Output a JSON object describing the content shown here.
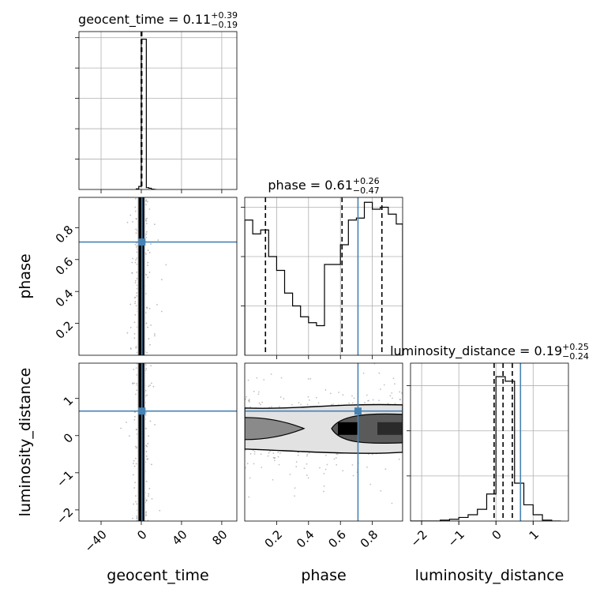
{
  "chart_data": {
    "type": "corner",
    "colors": {
      "truth": "#4682b4",
      "histogram": "#000000",
      "grid": "#b0b0b0",
      "sample_points": "#8c8c8c"
    },
    "grid": true,
    "parameters": [
      {
        "key": "geocent_time",
        "label": "geocent_time",
        "title": {
          "prefix": "geocent_time = ",
          "median": "0.11",
          "upper": "+0.39",
          "lower": "−0.19"
        },
        "range": [
          -62,
          95
        ],
        "ticks": [
          {
            "value": -40,
            "label": "−40"
          },
          {
            "value": 0,
            "label": "0"
          },
          {
            "value": 40,
            "label": "40"
          },
          {
            "value": 80,
            "label": "80"
          }
        ],
        "quantiles": [
          -0.08,
          0.11,
          0.5
        ],
        "truth": 0.6,
        "density_max": 5.2,
        "density_ticks": [
          1,
          2,
          3,
          4,
          5
        ],
        "histogram": {
          "edges": [
            -5,
            -2.5,
            0,
            2.5,
            5,
            7.5,
            10,
            12.5,
            15
          ],
          "values": [
            0.02,
            0.1,
            4.95,
            4.95,
            0.06,
            0.04,
            0.01,
            0.0
          ]
        }
      },
      {
        "key": "phase",
        "label": "phase",
        "title": {
          "prefix": "phase = ",
          "median": "0.61",
          "upper": "+0.26",
          "lower": "−0.47"
        },
        "range": [
          0.0,
          0.99
        ],
        "ticks": [
          {
            "value": 0.2,
            "label": "0.2"
          },
          {
            "value": 0.4,
            "label": "0.4"
          },
          {
            "value": 0.6,
            "label": "0.6"
          },
          {
            "value": 0.8,
            "label": "0.8"
          }
        ],
        "quantiles": [
          0.13,
          0.61,
          0.86
        ],
        "truth": 0.71,
        "density_max": 1.6,
        "density_ticks": [
          0.5,
          1.0,
          1.5
        ],
        "histogram": {
          "edges": [
            0.0,
            0.05,
            0.1,
            0.15,
            0.2,
            0.25,
            0.3,
            0.35,
            0.4,
            0.45,
            0.5,
            0.55,
            0.6,
            0.65,
            0.7,
            0.75,
            0.8,
            0.85,
            0.9,
            0.95,
            0.99
          ],
          "values": [
            1.37,
            1.23,
            1.27,
            1.0,
            0.86,
            0.63,
            0.5,
            0.39,
            0.33,
            0.3,
            0.92,
            0.92,
            1.12,
            1.37,
            1.39,
            1.55,
            1.48,
            1.5,
            1.43,
            1.33
          ]
        }
      },
      {
        "key": "luminosity_distance",
        "label": "luminosity_distance",
        "title": {
          "prefix": "luminosity_distance = ",
          "median": "0.19",
          "upper": "+0.25",
          "lower": "−0.24"
        },
        "range": [
          -2.3,
          1.95
        ],
        "ticks": [
          {
            "value": -2,
            "label": "−2"
          },
          {
            "value": -1,
            "label": "−1"
          },
          {
            "value": 0,
            "label": "0"
          },
          {
            "value": 1,
            "label": "1"
          }
        ],
        "quantiles": [
          -0.05,
          0.19,
          0.44
        ],
        "truth": 0.66,
        "density_max": 1.75,
        "density_ticks": [
          0.5,
          1.0,
          1.5
        ],
        "histogram": {
          "edges": [
            -2.3,
            -2.0,
            -1.75,
            -1.5,
            -1.25,
            -1.0,
            -0.75,
            -0.5,
            -0.25,
            0.0,
            0.25,
            0.5,
            0.75,
            1.0,
            1.25,
            1.5,
            1.75
          ],
          "values": [
            0.0,
            0.0,
            0.0,
            0.01,
            0.02,
            0.04,
            0.07,
            0.13,
            0.3,
            1.6,
            1.55,
            0.42,
            0.18,
            0.07,
            0.01,
            0.0
          ]
        }
      }
    ],
    "pair_panels": [
      {
        "x": "geocent_time",
        "y": "phase",
        "kind": "vertical-band",
        "center": 0.1,
        "width": 3.0
      },
      {
        "x": "geocent_time",
        "y": "luminosity_distance",
        "kind": "vertical-band",
        "center": 0.1,
        "width": 3.0
      },
      {
        "x": "phase",
        "y": "luminosity_distance",
        "kind": "horizontal-band",
        "center": 0.19,
        "width": 0.5
      }
    ]
  }
}
